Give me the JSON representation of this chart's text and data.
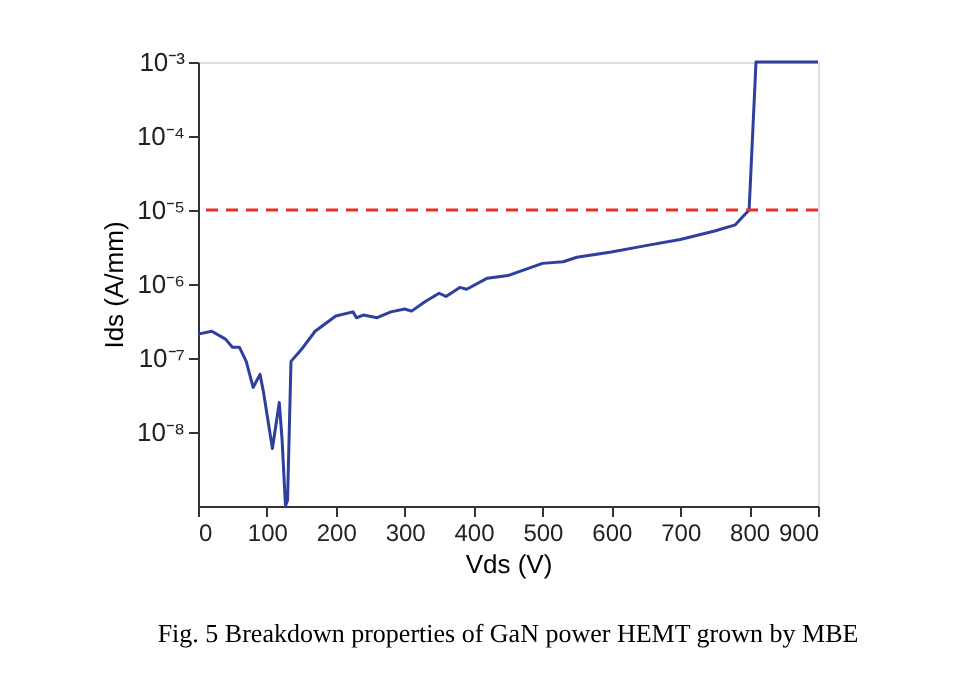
{
  "chart_data": {
    "type": "line",
    "title": "Fig. 5 Breakdown properties of GaN power HEMT grown by MBE",
    "xlabel": "Vds (V)",
    "ylabel": "Ids (A/mm)",
    "log": "y",
    "x": [
      0,
      20,
      40,
      50,
      60,
      70,
      80,
      90,
      95,
      108,
      118,
      122,
      127,
      130,
      135,
      150,
      170,
      200,
      225,
      230,
      240,
      260,
      280,
      300,
      310,
      330,
      350,
      360,
      380,
      390,
      420,
      450,
      500,
      530,
      550,
      600,
      650,
      700,
      750,
      780,
      790,
      800,
      810,
      900
    ],
    "series": [
      {
        "color": "#2e3f9e",
        "values": [
          2.1e-07,
          2.3e-07,
          1.8e-07,
          1.4e-07,
          1.4e-07,
          9e-08,
          4e-08,
          6e-08,
          3.5e-08,
          6e-09,
          2.5e-08,
          8e-09,
          1e-09,
          1.2e-09,
          9e-08,
          1.3e-07,
          2.3e-07,
          3.7e-07,
          4.2e-07,
          3.5e-07,
          3.8e-07,
          3.5e-07,
          4.2e-07,
          4.6e-07,
          4.3e-07,
          5.8e-07,
          7.5e-07,
          6.8e-07,
          9e-07,
          8.5e-07,
          1.2e-06,
          1.3e-06,
          1.9e-06,
          2e-06,
          2.3e-06,
          2.7e-06,
          3.3e-06,
          4e-06,
          5.2e-06,
          6.3e-06,
          8e-06,
          1e-05,
          0.001,
          0.001
        ]
      }
    ],
    "xlim": [
      0,
      900
    ],
    "xticks": [
      0,
      100,
      200,
      300,
      400,
      500,
      600,
      700,
      800,
      900
    ],
    "ylim": [
      1e-09,
      0.001
    ],
    "yticks": [
      {
        "value": 1e-08,
        "label": "10⁻⁸"
      },
      {
        "value": 1e-07,
        "label": "10⁻⁷"
      },
      {
        "value": 1e-06,
        "label": "10⁻⁶"
      },
      {
        "value": 1e-05,
        "label": "10⁻⁵"
      },
      {
        "value": 0.0001,
        "label": "10⁻⁴"
      },
      {
        "value": 0.001,
        "label": "10⁻³"
      }
    ],
    "ref_lines": [
      {
        "axis": "y",
        "value": 1e-05,
        "color": "#e8302a",
        "line_style": "dashed"
      }
    ],
    "grid": false,
    "legend": false,
    "line_style": "solid",
    "marker": "none"
  }
}
